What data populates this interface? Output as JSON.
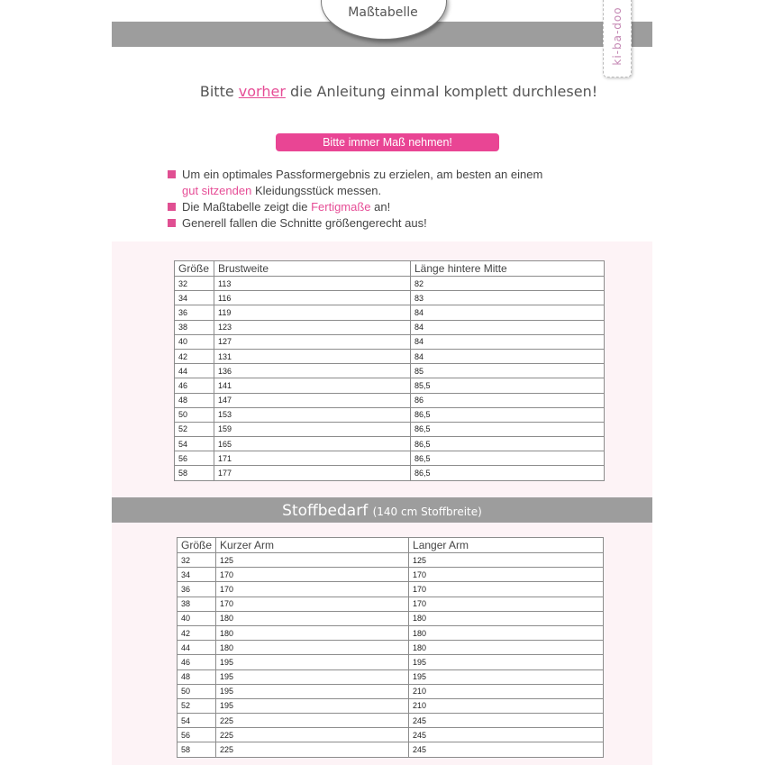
{
  "header": {
    "title": "Maßtabelle",
    "logo_text": "ki-ba-doo"
  },
  "intro": {
    "before": "Bitte ",
    "highlight": "vorher",
    "after": " die Anleitung einmal komplett durchlesen!"
  },
  "notice": "Bitte immer Maß nehmen!",
  "bullets": [
    {
      "before": "Um ein optimales Passformergebnis zu erzielen, am besten an einem",
      "line2_highlight": "gut sitzenden",
      "line2_after": " Kleidungsstück messen."
    },
    {
      "before": "Die Maßtabelle zeigt die ",
      "highlight": "Fertigmaße",
      "after": " an!"
    },
    {
      "text": "Generell fallen die Schnitte größengerecht aus!"
    }
  ],
  "colors": {
    "accent": "#e94594",
    "bar": "#9d9d9d",
    "section_bg": "#fdf3f6"
  },
  "size_table": {
    "headers": [
      "Größe",
      "Brustweite",
      "Länge hintere Mitte"
    ],
    "rows": [
      [
        "32",
        "113",
        "82"
      ],
      [
        "34",
        "116",
        "83"
      ],
      [
        "36",
        "119",
        "84"
      ],
      [
        "38",
        "123",
        "84"
      ],
      [
        "40",
        "127",
        "84"
      ],
      [
        "42",
        "131",
        "84"
      ],
      [
        "44",
        "136",
        "85"
      ],
      [
        "46",
        "141",
        "85,5"
      ],
      [
        "48",
        "147",
        "86"
      ],
      [
        "50",
        "153",
        "86,5"
      ],
      [
        "52",
        "159",
        "86,5"
      ],
      [
        "54",
        "165",
        "86,5"
      ],
      [
        "56",
        "171",
        "86,5"
      ],
      [
        "58",
        "177",
        "86,5"
      ]
    ]
  },
  "fabric_section": {
    "title": "Stoffbedarf",
    "subtitle": "(140 cm Stoffbreite)"
  },
  "fabric_table": {
    "headers": [
      "Größe",
      "Kurzer Arm",
      "Langer Arm"
    ],
    "rows": [
      [
        "32",
        "125",
        "125"
      ],
      [
        "34",
        "170",
        "170"
      ],
      [
        "36",
        "170",
        "170"
      ],
      [
        "38",
        "170",
        "170"
      ],
      [
        "40",
        "180",
        "180"
      ],
      [
        "42",
        "180",
        "180"
      ],
      [
        "44",
        "180",
        "180"
      ],
      [
        "46",
        "195",
        "195"
      ],
      [
        "48",
        "195",
        "195"
      ],
      [
        "50",
        "195",
        "210"
      ],
      [
        "52",
        "195",
        "210"
      ],
      [
        "54",
        "225",
        "245"
      ],
      [
        "56",
        "225",
        "245"
      ],
      [
        "58",
        "225",
        "245"
      ]
    ]
  }
}
